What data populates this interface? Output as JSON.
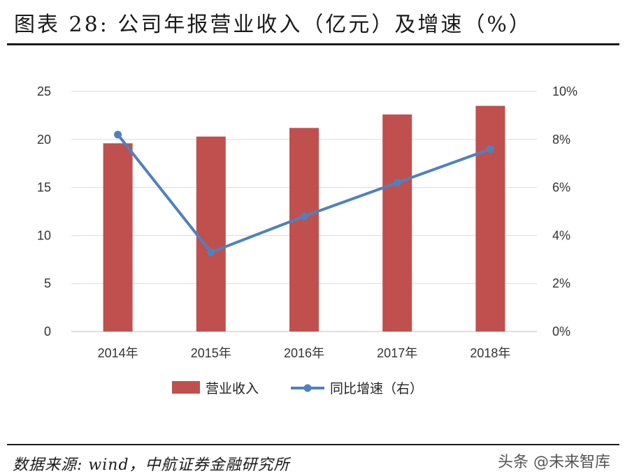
{
  "page": {
    "title": "图表 28: 公司年报营业收入（亿元）及增速（%）",
    "source": "数据来源: wind，中航证券金融研究所",
    "watermark": "头条 @未来智库"
  },
  "chart_data": {
    "type": "bar",
    "categories": [
      "2014年",
      "2015年",
      "2016年",
      "2017年",
      "2018年"
    ],
    "series": [
      {
        "name": "营业收入",
        "type": "bar",
        "axis": "left",
        "color": "#C0504D",
        "values": [
          19.6,
          20.3,
          21.2,
          22.6,
          23.5
        ]
      },
      {
        "name": "同比增速（右）",
        "type": "line",
        "axis": "right",
        "color": "#4F81BD",
        "values": [
          8.2,
          3.3,
          4.8,
          6.2,
          7.6
        ]
      }
    ],
    "y_left": {
      "min": 0,
      "max": 25,
      "ticks": [
        "0",
        "5",
        "10",
        "15",
        "20",
        "25"
      ]
    },
    "y_right": {
      "min": 0,
      "max": 10,
      "ticks": [
        "0%",
        "2%",
        "4%",
        "6%",
        "8%",
        "10%"
      ]
    },
    "grid": true,
    "legend": "bottom"
  }
}
